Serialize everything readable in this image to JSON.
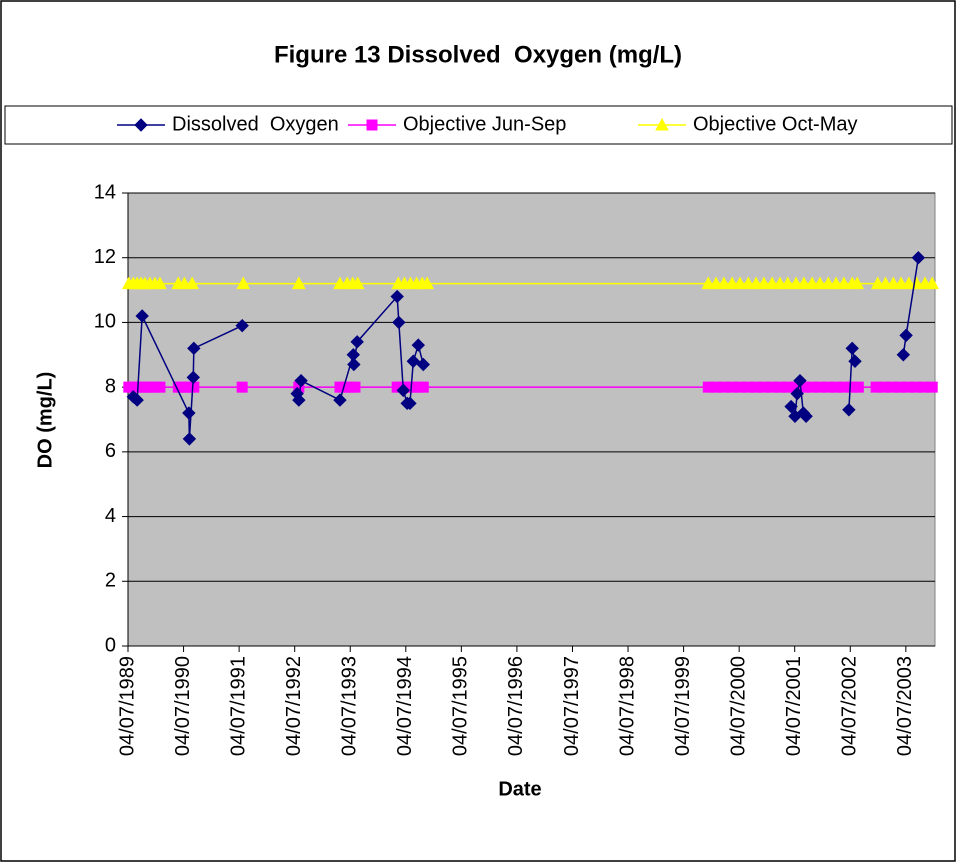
{
  "chart_data": {
    "type": "line",
    "title": "Figure 13 Dissolved  Oxygen (mg/L)",
    "x_label": "Date",
    "y_label": "DO (mg/L)",
    "legend": "top",
    "grid": true,
    "xlim": [
      1989.505,
      2004.03
    ],
    "xticks": [
      {
        "value": 1989.505,
        "label": "04/07/1989"
      },
      {
        "value": 1990.505,
        "label": "04/07/1990"
      },
      {
        "value": 1991.505,
        "label": "04/07/1991"
      },
      {
        "value": 1992.505,
        "label": "04/07/1992"
      },
      {
        "value": 1993.505,
        "label": "04/07/1993"
      },
      {
        "value": 1994.505,
        "label": "04/07/1994"
      },
      {
        "value": 1995.505,
        "label": "04/07/1995"
      },
      {
        "value": 1996.505,
        "label": "04/07/1996"
      },
      {
        "value": 1997.505,
        "label": "04/07/1997"
      },
      {
        "value": 1998.505,
        "label": "04/07/1998"
      },
      {
        "value": 1999.505,
        "label": "04/07/1999"
      },
      {
        "value": 2000.505,
        "label": "04/07/2000"
      },
      {
        "value": 2001.505,
        "label": "04/07/2001"
      },
      {
        "value": 2002.505,
        "label": "04/07/2002"
      },
      {
        "value": 2003.505,
        "label": "04/07/2003"
      }
    ],
    "ylim": [
      0,
      14
    ],
    "yticks": [
      0,
      2,
      4,
      6,
      8,
      10,
      12,
      14
    ],
    "series": [
      {
        "name": "Dissolved  Oxygen",
        "color": "#000080",
        "marker": "diamond",
        "x": [
          1989.6,
          1989.67,
          1989.76,
          1990.6,
          1990.61,
          1990.68,
          1990.69,
          1991.56,
          null,
          1992.55,
          1992.58,
          1992.62,
          1993.32,
          1993.56,
          1993.57,
          1993.63,
          1994.35,
          1994.38,
          1994.46,
          1994.53,
          1994.58,
          1994.64,
          1994.73,
          1994.82,
          null,
          2001.44,
          2001.51,
          2001.55,
          2001.6,
          2001.66,
          2001.71,
          null,
          2002.48,
          2002.54,
          2002.59,
          null,
          2003.46,
          2003.51,
          2003.73
        ],
        "values": [
          7.7,
          7.6,
          10.2,
          7.2,
          6.4,
          8.3,
          9.2,
          9.9,
          null,
          7.8,
          7.6,
          8.2,
          7.6,
          9.0,
          8.7,
          9.4,
          10.8,
          10.0,
          7.9,
          7.5,
          7.5,
          8.8,
          9.3,
          8.7,
          null,
          7.4,
          7.1,
          7.8,
          8.2,
          7.2,
          7.1,
          null,
          7.3,
          9.2,
          8.8,
          null,
          9.0,
          9.6,
          12.0
        ]
      },
      {
        "name": "Objective Jun-Sep",
        "color": "#ff00ff",
        "marker": "square",
        "x": [
          1989.52,
          1989.6,
          1989.67,
          1989.74,
          1989.81,
          1989.9,
          1989.99,
          1990.08,
          1990.41,
          1990.48,
          1990.55,
          1990.62,
          1990.69,
          1991.56,
          1992.58,
          1993.32,
          1993.41,
          1993.5,
          1993.59,
          1994.35,
          1994.44,
          1994.53,
          1994.62,
          1994.71,
          1994.82,
          1999.95,
          2000.09,
          2000.23,
          2000.38,
          2000.52,
          2000.67,
          2000.81,
          2000.95,
          2001.1,
          2001.24,
          2001.38,
          2001.53,
          2001.67,
          2001.82,
          2001.96,
          2002.11,
          2002.25,
          2002.39,
          2002.54,
          2002.65,
          2002.97,
          2003.11,
          2003.26,
          2003.4,
          2003.54,
          2003.69,
          2003.83,
          2003.98
        ],
        "values": [
          8,
          8,
          8,
          8,
          8,
          8,
          8,
          8,
          8,
          8,
          8,
          8,
          8,
          8,
          8,
          8,
          8,
          8,
          8,
          8,
          8,
          8,
          8,
          8,
          8,
          8,
          8,
          8,
          8,
          8,
          8,
          8,
          8,
          8,
          8,
          8,
          8,
          8,
          8,
          8,
          8,
          8,
          8,
          8,
          8,
          8,
          8,
          8,
          8,
          8,
          8,
          8,
          8
        ]
      },
      {
        "name": "Objective Oct-May",
        "color": "#ffff00",
        "marker": "triangle",
        "x": [
          1989.52,
          1989.6,
          1989.67,
          1989.74,
          1989.81,
          1989.9,
          1989.99,
          1990.08,
          1990.41,
          1990.52,
          1990.66,
          1991.58,
          1992.58,
          1993.32,
          1993.45,
          1993.55,
          1993.64,
          1994.37,
          1994.48,
          1994.59,
          1994.7,
          1994.8,
          1994.89,
          1999.95,
          2000.09,
          2000.23,
          2000.38,
          2000.52,
          2000.67,
          2000.81,
          2000.95,
          2001.1,
          2001.24,
          2001.38,
          2001.53,
          2001.67,
          2001.82,
          2001.96,
          2002.11,
          2002.25,
          2002.39,
          2002.54,
          2002.63,
          2003.0,
          2003.14,
          2003.28,
          2003.42,
          2003.56,
          2003.7,
          2003.85,
          2003.98
        ],
        "values": [
          11.2,
          11.2,
          11.2,
          11.2,
          11.2,
          11.2,
          11.2,
          11.2,
          11.2,
          11.2,
          11.2,
          11.2,
          11.2,
          11.2,
          11.2,
          11.2,
          11.2,
          11.2,
          11.2,
          11.2,
          11.2,
          11.2,
          11.2,
          11.2,
          11.2,
          11.2,
          11.2,
          11.2,
          11.2,
          11.2,
          11.2,
          11.2,
          11.2,
          11.2,
          11.2,
          11.2,
          11.2,
          11.2,
          11.2,
          11.2,
          11.2,
          11.2,
          11.2,
          11.2,
          11.2,
          11.2,
          11.2,
          11.2,
          11.2,
          11.2,
          11.2
        ]
      }
    ]
  }
}
